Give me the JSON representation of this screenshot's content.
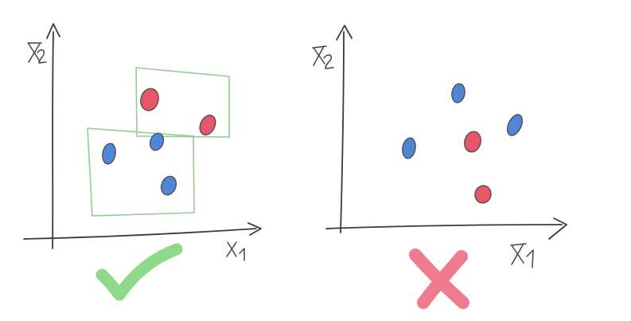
{
  "colors": {
    "point_red": "#e8566a",
    "point_blue": "#4f86d6",
    "box_green": "#8fce8f",
    "check_green": "#8fd98b",
    "cross_red": "#f07b8c"
  },
  "left_panel": {
    "x_axis_label": "x₁",
    "y_axis_label": "x₂",
    "verdict_icon": "check-mark-icon",
    "points": [
      {
        "class": "red"
      },
      {
        "class": "red"
      },
      {
        "class": "blue"
      },
      {
        "class": "blue"
      },
      {
        "class": "blue"
      }
    ],
    "boxes": 2
  },
  "right_panel": {
    "x_axis_label": "x₁",
    "y_axis_label": "x₂",
    "verdict_icon": "cross-mark-icon",
    "points": [
      {
        "class": "blue"
      },
      {
        "class": "blue"
      },
      {
        "class": "blue"
      },
      {
        "class": "red"
      },
      {
        "class": "red"
      }
    ]
  }
}
